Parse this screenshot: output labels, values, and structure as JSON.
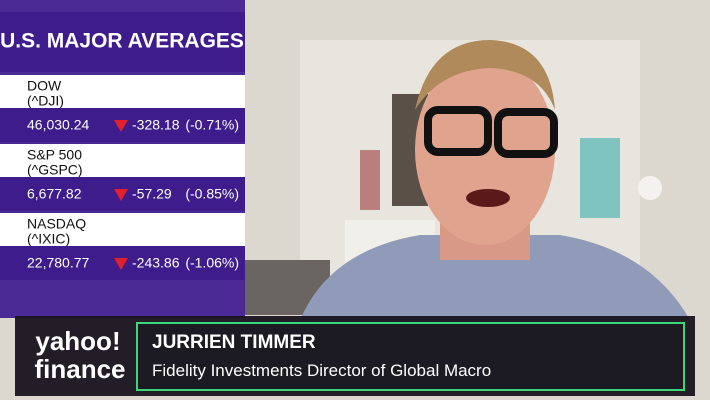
{
  "ticker_panel": {
    "title": "U.S. MAJOR AVERAGES",
    "indices": [
      {
        "name": "DOW",
        "symbol": "(^DJI)",
        "price": "46,030.24",
        "change": "-328.18",
        "percent": "(-0.71%)"
      },
      {
        "name": "S&P 500",
        "symbol": "(^GSPC)",
        "price": "6,677.82",
        "change": "-57.29",
        "percent": "(-0.85%)"
      },
      {
        "name": "NASDAQ",
        "symbol": "(^IXIC)",
        "price": "22,780.77",
        "change": "-243.86",
        "percent": "(-1.06%)"
      }
    ]
  },
  "lower_third": {
    "logo_top": "yahoo!",
    "logo_bottom": "finance",
    "name": "JURRIEN TIMMER",
    "role": "Fidelity Investments Director of Global Macro"
  }
}
